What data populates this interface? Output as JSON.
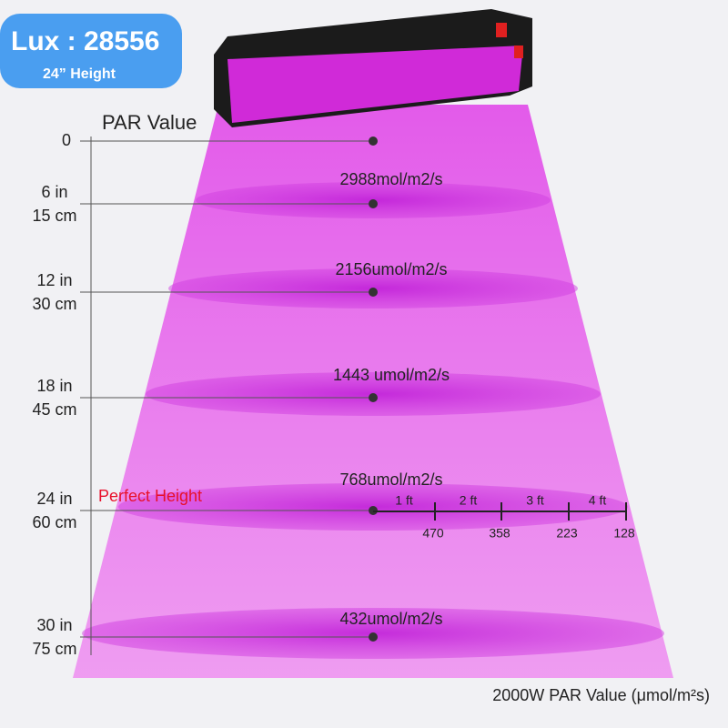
{
  "badge": {
    "lux_label": "Lux :",
    "lux_value": "28556",
    "height": "24” Height"
  },
  "title": "PAR Value",
  "levels": [
    {
      "height": "0",
      "par": null
    },
    {
      "height": "6 in",
      "cm": "15 cm",
      "par": "2988mol/m2/s"
    },
    {
      "height": "12 in",
      "cm": "30 cm",
      "par": "2156umol/m2/s"
    },
    {
      "height": "18 in",
      "cm": "45 cm",
      "par": "1443 umol/m2/s"
    },
    {
      "height": "24 in",
      "cm": "60 cm",
      "par": "768umol/m2/s"
    },
    {
      "height": "30 in",
      "cm": "75 cm",
      "par": "432umol/m2/s"
    }
  ],
  "perfect": "Perfect Height",
  "spread": [
    {
      "distance": "1 ft",
      "value": "470"
    },
    {
      "distance": "2 ft",
      "value": "358"
    },
    {
      "distance": "3 ft",
      "value": "223"
    },
    {
      "distance": "4 ft",
      "value": "128"
    }
  ],
  "footer": "2000W PAR Value (μmol/m²s)"
}
